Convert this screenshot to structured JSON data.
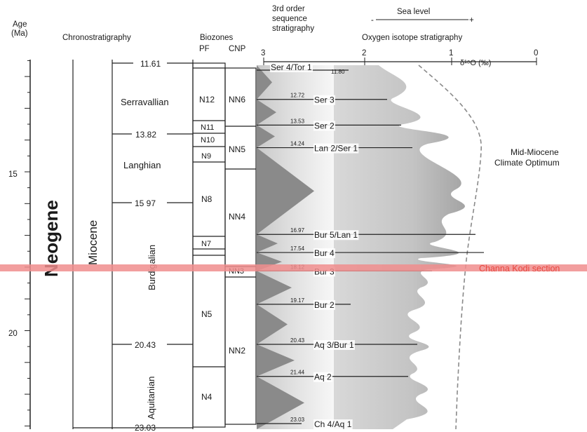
{
  "headers": {
    "age_line1": "Age",
    "age_line2": "(Ma)",
    "chronostratigraphy": "Chronostratigraphy",
    "biozones": "Biozones",
    "pf": "PF",
    "cnp": "CNP",
    "seq_line1": "3rd order",
    "seq_line2": "sequence",
    "seq_line3": "stratigraphy",
    "sea_level": "Sea level",
    "sea_minus": "-",
    "sea_plus": "+",
    "oxygen": "Oxygen isotope stratigraphy",
    "d18o": "δ¹⁸O (‰)"
  },
  "age_ticks": [
    "15",
    "20"
  ],
  "eras": {
    "era": "Neogene",
    "epoch": "Miocene"
  },
  "stages": [
    {
      "name": "Serravallian"
    },
    {
      "name": "Langhian"
    },
    {
      "name": "Burdigalian"
    },
    {
      "name": "Aquitanian"
    }
  ],
  "stage_boundaries": [
    "11.61",
    "13.82",
    "15 97",
    "20.43",
    "23.03"
  ],
  "pf_zones": [
    "N12",
    "N11",
    "N10",
    "N9",
    "N8",
    "N7",
    "N5",
    "N4"
  ],
  "cnp_zones": [
    "NN6",
    "NN5",
    "NN4",
    "NN3",
    "NN2"
  ],
  "isotope_axis": {
    "ticks": [
      "3",
      "2",
      "1",
      "0"
    ]
  },
  "sequences": [
    {
      "age": "11.80",
      "label": "Ser 4/Tor 1"
    },
    {
      "age": "12.72",
      "label": "Ser 3"
    },
    {
      "age": "13.53",
      "label": "Ser 2"
    },
    {
      "age": "14.24",
      "label": "Lan 2/Ser 1"
    },
    {
      "age": "16.97",
      "label": "Bur 5/Lan 1"
    },
    {
      "age": "17.54",
      "label": "Bur 4"
    },
    {
      "age": "18.12",
      "label": "Bur 3"
    },
    {
      "age": "19.17",
      "label": "Bur 2"
    },
    {
      "age": "20.43",
      "label": "Aq 3/Bur 1"
    },
    {
      "age": "21.44",
      "label": "Aq 2"
    },
    {
      "age": "23.03",
      "label": "Ch 4/Aq 1"
    }
  ],
  "annotations": {
    "climate_line1": "Mid-Miocene",
    "climate_line2": "Climate Optimum",
    "section": "Channa Kodi section"
  },
  "colors": {
    "highlight": "#f08d8d",
    "highlight_text": "#e8473f",
    "triangle": "#8a8a8a"
  }
}
